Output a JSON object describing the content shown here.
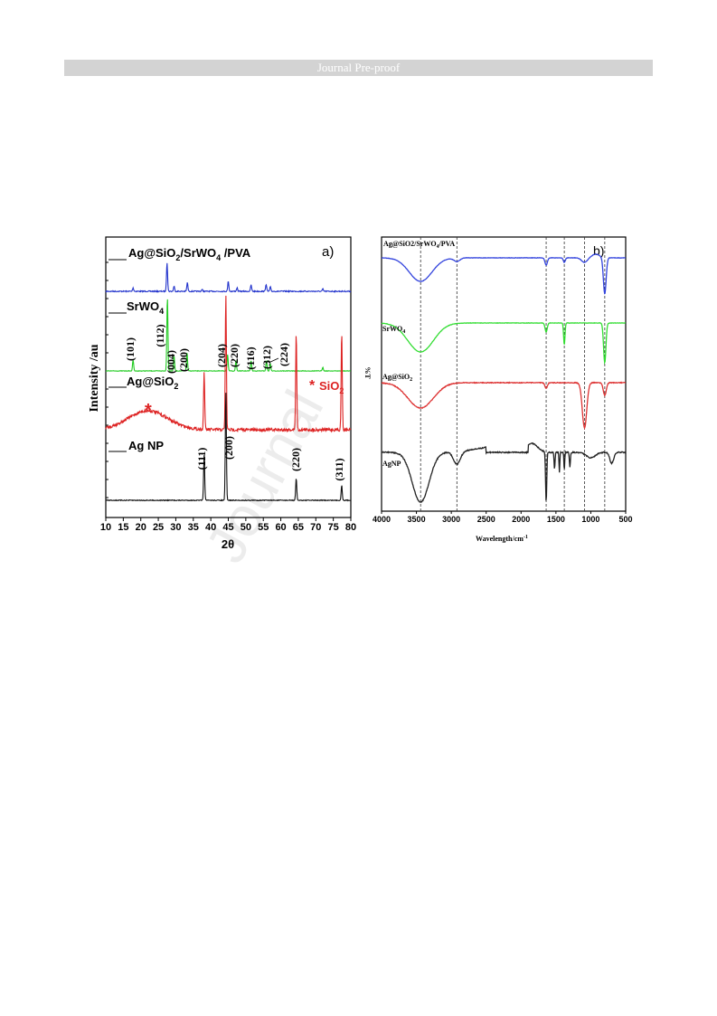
{
  "header": {
    "banner": "Journal Pre-proof"
  },
  "watermark": "Journal",
  "chart_data": [
    {
      "type": "line",
      "panel_label": "a)",
      "xlabel": "2θ",
      "ylabel": "Intensity /au",
      "xlim": [
        10,
        80
      ],
      "xticks": [
        10,
        15,
        20,
        25,
        30,
        35,
        40,
        45,
        50,
        55,
        60,
        65,
        70,
        75,
        80
      ],
      "series": [
        {
          "name": "Ag@SiO2/SrWO4 /PVA",
          "color": "#2233cc",
          "peaks": [
            [
              17.8,
              0.12
            ],
            [
              27.5,
              1.0
            ],
            [
              29.5,
              0.18
            ],
            [
              33.3,
              0.3
            ],
            [
              37.5,
              0.06
            ],
            [
              45.0,
              0.35
            ],
            [
              47.5,
              0.12
            ],
            [
              51.5,
              0.22
            ],
            [
              55.8,
              0.25
            ],
            [
              57.0,
              0.15
            ],
            [
              72.0,
              0.08
            ]
          ]
        },
        {
          "name": "SrWO4",
          "color": "#22cc22",
          "peaks": [
            [
              17.8,
              0.15
            ],
            [
              27.6,
              1.0
            ],
            [
              29.5,
              0.2
            ],
            [
              33.2,
              0.25
            ],
            [
              44.8,
              0.22
            ],
            [
              47.2,
              0.14
            ],
            [
              51.5,
              0.14
            ],
            [
              55.9,
              0.14
            ],
            [
              57.0,
              0.1
            ],
            [
              72.0,
              0.05
            ]
          ]
        },
        {
          "name": "Ag@SiO2",
          "color": "#dd2222",
          "peaks": [
            [
              38.1,
              0.42
            ],
            [
              44.3,
              1.0
            ],
            [
              64.4,
              0.72
            ],
            [
              77.4,
              0.72
            ]
          ],
          "hump": [
            22,
            0.14
          ]
        },
        {
          "name": "Ag NP",
          "color": "#111111",
          "peaks": [
            [
              38.1,
              0.42
            ],
            [
              44.3,
              1.0
            ],
            [
              64.4,
              0.2
            ],
            [
              77.4,
              0.14
            ]
          ]
        }
      ],
      "annotations": {
        "srwo4_planes": [
          "(101)",
          "(112)",
          "(004)",
          "(200)",
          "(204)",
          "(220)",
          "(116)",
          "(312)",
          "(224)"
        ],
        "ag_planes": [
          "(111)",
          "(200)",
          "(220)",
          "(311)"
        ],
        "sio2_marker": "*",
        "sio2_label": "SiO2",
        "sio2_label_text": "SiO",
        "sio2_label_sub": "2"
      }
    },
    {
      "type": "line",
      "panel_label": "b)",
      "xlabel": "Wavelength/cm",
      "xlabel_sup": "-1",
      "ylabel": "%T",
      "xlim": [
        4000,
        500
      ],
      "xticks": [
        4000,
        3500,
        3000,
        2500,
        2000,
        1500,
        1000,
        500
      ],
      "reference_lines": [
        3440,
        2920,
        1640,
        1380,
        1090,
        800
      ],
      "series": [
        {
          "name": "Ag@SiO2/SrWO4/PVA",
          "color": "#3344dd"
        },
        {
          "name": "SrWO4",
          "color": "#33dd33"
        },
        {
          "name": "Ag@SiO2",
          "color": "#dd3333"
        },
        {
          "name": "AgNP",
          "color": "#222222"
        }
      ]
    }
  ],
  "labels": {
    "a_s1": "Ag@SiO",
    "a_s1_sub": "2",
    "a_s1_b": "/SrWO",
    "a_s1_sub2": "4",
    "a_s1_c": " /PVA",
    "a_s2": "SrWO",
    "a_s2_sub": "4",
    "a_s3": "Ag@SiO",
    "a_s3_sub": "2",
    "a_s4": "Ag NP",
    "b_s1": "Ag@SiO2/SrWO",
    "b_s1_sub": "4",
    "b_s1_b": "/PVA",
    "b_s2": "SrWO",
    "b_s2_sub": "4",
    "b_s3": "Ag@SiO",
    "b_s3_sub": "2",
    "b_s4": "AgNP"
  }
}
